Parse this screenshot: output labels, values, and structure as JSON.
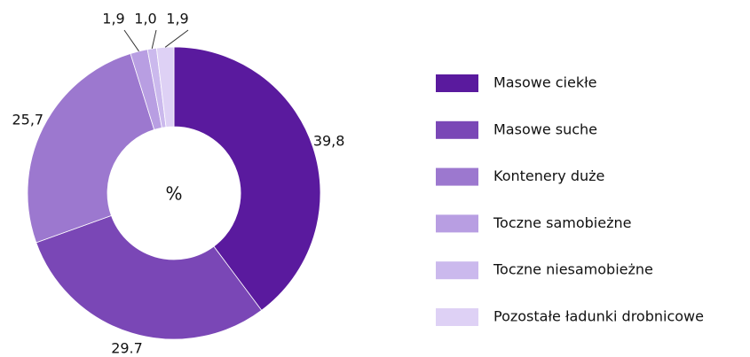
{
  "chart_data": {
    "type": "donut",
    "center_label": "%",
    "categories": [
      "Masowe ciekłe",
      "Masowe suche",
      "Kontenery duże",
      "Toczne samobieżne",
      "Toczne niesamobieżne",
      "Pozostałe ładunki drobnicowe"
    ],
    "values": [
      39.8,
      29.7,
      25.7,
      1.9,
      1.0,
      1.9
    ],
    "value_labels": [
      "39,8",
      "29.7",
      "25,7",
      "1,9",
      "1,0",
      "1,9"
    ],
    "colors": [
      "#5a1a9e",
      "#7a47b6",
      "#9c78cf",
      "#b89ee2",
      "#cbb9ed",
      "#ded1f5"
    ],
    "legend": "right"
  }
}
